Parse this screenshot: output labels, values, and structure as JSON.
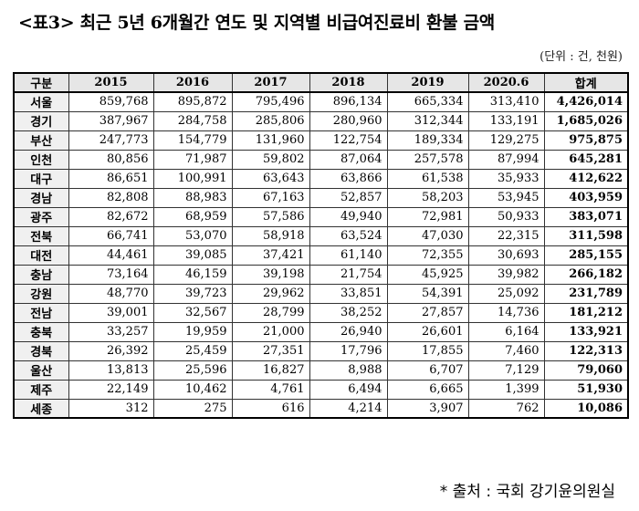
{
  "title": "<표3> 최근 5년 6개월간 연도 및 지역별 비급여진료비 환불 금액",
  "unit": "(단위 : 건, 천원)",
  "table": {
    "headers": [
      "구분",
      "2015",
      "2016",
      "2017",
      "2018",
      "2019",
      "2020.6",
      "합계"
    ],
    "rows": [
      {
        "region": "서울",
        "values": [
          "859,768",
          "895,872",
          "795,496",
          "896,134",
          "665,334",
          "313,410"
        ],
        "total": "4,426,014"
      },
      {
        "region": "경기",
        "values": [
          "387,967",
          "284,758",
          "285,806",
          "280,960",
          "312,344",
          "133,191"
        ],
        "total": "1,685,026"
      },
      {
        "region": "부산",
        "values": [
          "247,773",
          "154,779",
          "131,960",
          "122,754",
          "189,334",
          "129,275"
        ],
        "total": "975,875"
      },
      {
        "region": "인천",
        "values": [
          "80,856",
          "71,987",
          "59,802",
          "87,064",
          "257,578",
          "87,994"
        ],
        "total": "645,281"
      },
      {
        "region": "대구",
        "values": [
          "86,651",
          "100,991",
          "63,643",
          "63,866",
          "61,538",
          "35,933"
        ],
        "total": "412,622"
      },
      {
        "region": "경남",
        "values": [
          "82,808",
          "88,983",
          "67,163",
          "52,857",
          "58,203",
          "53,945"
        ],
        "total": "403,959"
      },
      {
        "region": "광주",
        "values": [
          "82,672",
          "68,959",
          "57,586",
          "49,940",
          "72,981",
          "50,933"
        ],
        "total": "383,071"
      },
      {
        "region": "전북",
        "values": [
          "66,741",
          "53,070",
          "58,918",
          "63,524",
          "47,030",
          "22,315"
        ],
        "total": "311,598"
      },
      {
        "region": "대전",
        "values": [
          "44,461",
          "39,085",
          "37,421",
          "61,140",
          "72,355",
          "30,693"
        ],
        "total": "285,155"
      },
      {
        "region": "충남",
        "values": [
          "73,164",
          "46,159",
          "39,198",
          "21,754",
          "45,925",
          "39,982"
        ],
        "total": "266,182"
      },
      {
        "region": "강원",
        "values": [
          "48,770",
          "39,723",
          "29,962",
          "33,851",
          "54,391",
          "25,092"
        ],
        "total": "231,789"
      },
      {
        "region": "전남",
        "values": [
          "39,001",
          "32,567",
          "28,799",
          "38,252",
          "27,857",
          "14,736"
        ],
        "total": "181,212"
      },
      {
        "region": "충북",
        "values": [
          "33,257",
          "19,959",
          "21,000",
          "26,940",
          "26,601",
          "6,164"
        ],
        "total": "133,921"
      },
      {
        "region": "경북",
        "values": [
          "26,392",
          "25,459",
          "27,351",
          "17,796",
          "17,855",
          "7,460"
        ],
        "total": "122,313"
      },
      {
        "region": "울산",
        "values": [
          "13,813",
          "25,596",
          "16,827",
          "8,988",
          "6,707",
          "7,129"
        ],
        "total": "79,060"
      },
      {
        "region": "제주",
        "values": [
          "22,149",
          "10,462",
          "4,761",
          "6,494",
          "6,665",
          "1,399"
        ],
        "total": "51,930"
      },
      {
        "region": "세종",
        "values": [
          "312",
          "275",
          "616",
          "4,214",
          "3,907",
          "762"
        ],
        "total": "10,086"
      }
    ]
  },
  "source": "* 출처 : 국회 강기윤의원실"
}
